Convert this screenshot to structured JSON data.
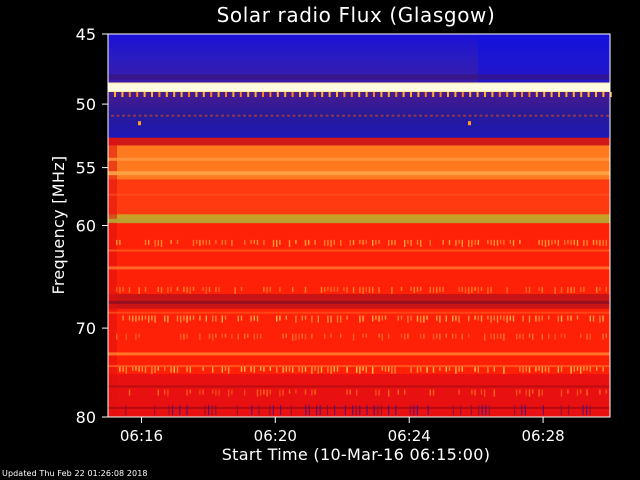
{
  "chart_data": {
    "type": "heatmap",
    "title": "Solar radio Flux (Glasgow)",
    "xlabel": "Start Time (10-Mar-16 06:15:00)",
    "ylabel": "Frequency [MHz]",
    "x_range": [
      "06:15:00",
      "06:30:00"
    ],
    "ylim": [
      45,
      80
    ],
    "y_scale": "log",
    "y_ticks": [
      45,
      50,
      55,
      60,
      70,
      80
    ],
    "y_tick_labels": [
      "45",
      "50",
      "55",
      "60",
      "70",
      "80"
    ],
    "x_ticks": [
      "06:16",
      "06:20",
      "06:24",
      "06:28"
    ],
    "x_tick_labels": [
      "06:16",
      "06:20",
      "06:24",
      "06:28"
    ],
    "frequency_bands": [
      {
        "from": 45.0,
        "to": 48.4,
        "level": "low",
        "color": "#1e14c8"
      },
      {
        "from": 48.4,
        "to": 49.1,
        "level": "very high",
        "color": "#ffe8a0"
      },
      {
        "from": 49.1,
        "to": 52.6,
        "level": "low",
        "color": "#20158c"
      },
      {
        "from": 52.6,
        "to": 53.2,
        "level": "medium",
        "color": "#d01818"
      },
      {
        "from": 53.2,
        "to": 56.0,
        "level": "high",
        "color": "#ff7a1e"
      },
      {
        "from": 56.0,
        "to": 59.0,
        "level": "medium-high",
        "color": "#ff3a10"
      },
      {
        "from": 59.0,
        "to": 59.8,
        "level": "high",
        "color": "#c8a028"
      },
      {
        "from": 59.8,
        "to": 66.5,
        "level": "medium",
        "color": "#ff2008"
      },
      {
        "from": 66.5,
        "to": 68.0,
        "level": "medium-low",
        "color": "#c81414"
      },
      {
        "from": 68.0,
        "to": 75.0,
        "level": "medium",
        "color": "#ff2008"
      },
      {
        "from": 75.0,
        "to": 80.0,
        "level": "medium-low",
        "color": "#e81010"
      }
    ],
    "colors": {
      "background": "#000000",
      "text": "#ffffff",
      "low": "#1e14c8",
      "medium": "#ff2008",
      "high": "#ff7a1e",
      "very_high": "#ffe8a0"
    }
  },
  "footer": {
    "text": "Updated Thu Feb 22 01:26:08 2018"
  }
}
